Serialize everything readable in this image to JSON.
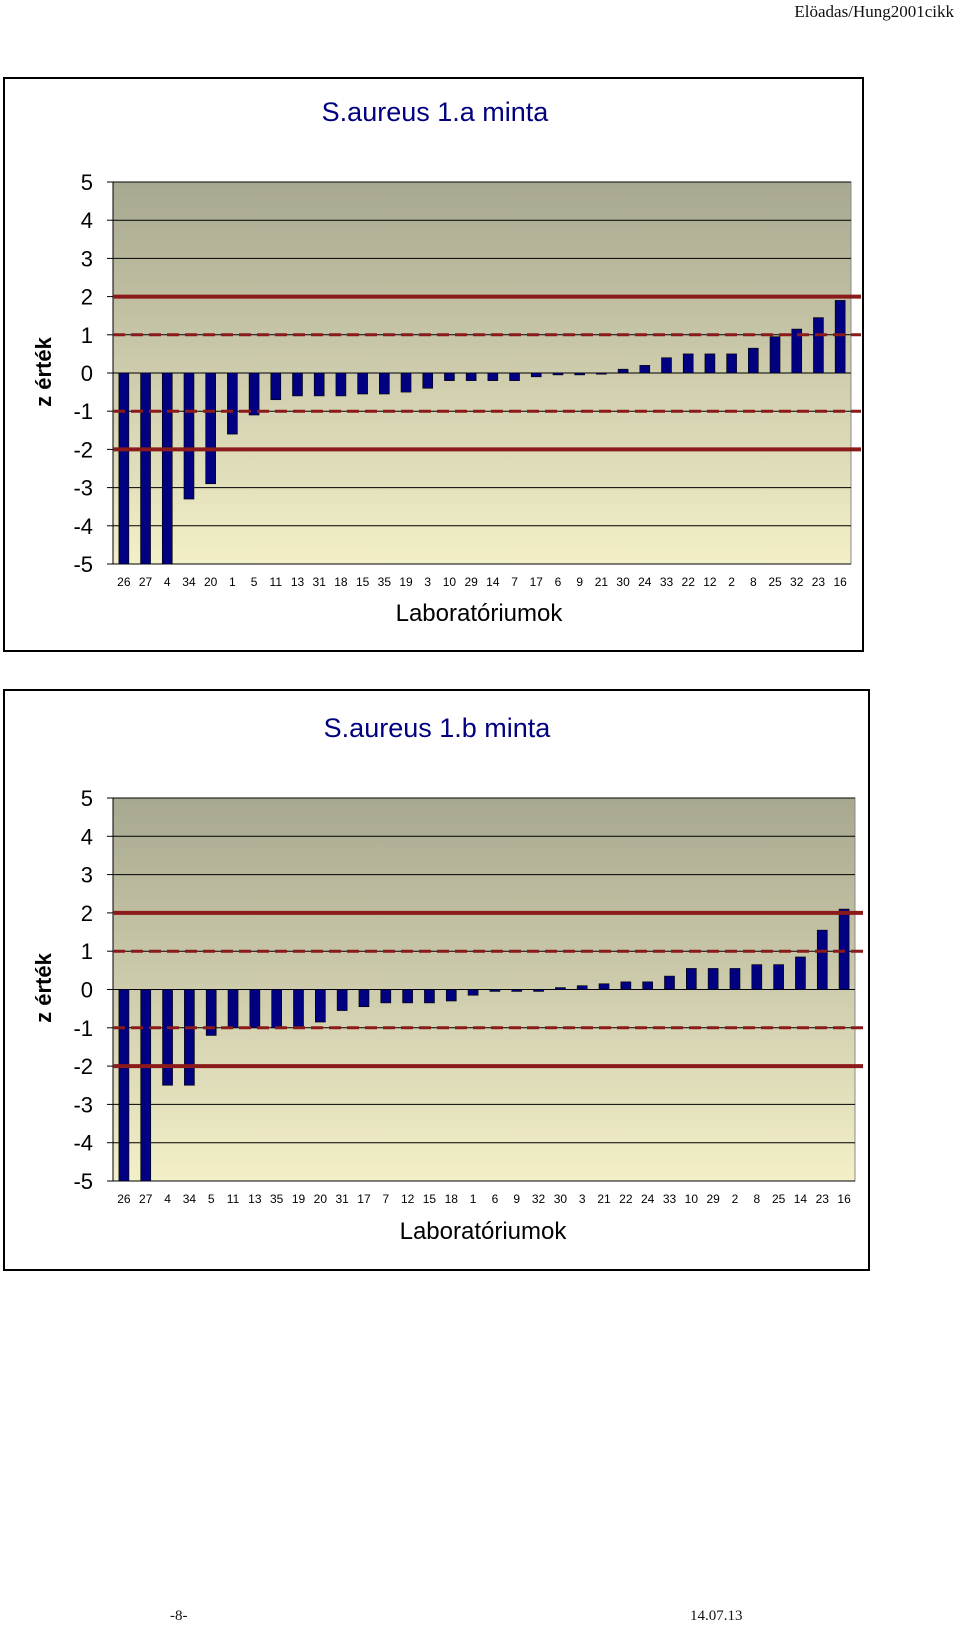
{
  "header": {
    "doc_ref": "Elöadas/Hung2001cikk"
  },
  "footer": {
    "page": "-8-",
    "date": "14.07.13"
  },
  "chart_data": [
    {
      "type": "bar",
      "title": "S.aureus 1.a minta",
      "xlabel": "Laboratóriumok",
      "ylabel": "z érték",
      "ylim": [
        -5,
        5
      ],
      "yticks": [
        "5",
        "4",
        "3",
        "2",
        "1",
        "0",
        "-1",
        "-2",
        "-3",
        "-4",
        "-5"
      ],
      "categories": [
        "26",
        "27",
        "4",
        "34",
        "20",
        "1",
        "5",
        "11",
        "13",
        "31",
        "18",
        "15",
        "35",
        "19",
        "3",
        "10",
        "29",
        "14",
        "7",
        "17",
        "6",
        "9",
        "21",
        "30",
        "24",
        "33",
        "22",
        "12",
        "2",
        "8",
        "25",
        "32",
        "23",
        "16"
      ],
      "values": [
        -5,
        -5,
        -5,
        -3.3,
        -2.9,
        -1.6,
        -1.1,
        -0.7,
        -0.6,
        -0.6,
        -0.6,
        -0.55,
        -0.55,
        -0.5,
        -0.4,
        -0.2,
        -0.2,
        -0.2,
        -0.2,
        -0.1,
        -0.05,
        -0.05,
        0,
        0.1,
        0.2,
        0.4,
        0.5,
        0.5,
        0.5,
        0.65,
        0.95,
        1.15,
        1.45,
        1.9
      ],
      "limits": {
        "solid": [
          2,
          -2
        ],
        "dashed": [
          1,
          -1
        ]
      },
      "colors": {
        "bar": "#000080",
        "plot_top": "#a8a890",
        "plot_bottom": "#f3f0c8",
        "limit": "#8b1a1a",
        "title": "#000080"
      }
    },
    {
      "type": "bar",
      "title": "S.aureus 1.b minta",
      "xlabel": "Laboratóriumok",
      "ylabel": "z érték",
      "ylim": [
        -5,
        5
      ],
      "yticks": [
        "5",
        "4",
        "3",
        "2",
        "1",
        "0",
        "-1",
        "-2",
        "-3",
        "-4",
        "-5"
      ],
      "categories": [
        "26",
        "27",
        "4",
        "34",
        "5",
        "11",
        "13",
        "35",
        "19",
        "20",
        "31",
        "17",
        "7",
        "12",
        "15",
        "18",
        "1",
        "6",
        "9",
        "32",
        "30",
        "3",
        "21",
        "22",
        "24",
        "33",
        "10",
        "29",
        "2",
        "8",
        "25",
        "14",
        "23",
        "16"
      ],
      "values": [
        -5,
        -5,
        -2.5,
        -2.5,
        -1.2,
        -1,
        -1,
        -1,
        -1,
        -0.85,
        -0.55,
        -0.45,
        -0.35,
        -0.35,
        -0.35,
        -0.3,
        -0.15,
        -0.05,
        -0.05,
        -0.05,
        0.05,
        0.1,
        0.15,
        0.2,
        0.2,
        0.35,
        0.55,
        0.55,
        0.55,
        0.65,
        0.65,
        0.85,
        1.55,
        2.1
      ],
      "limits": {
        "solid": [
          2,
          -2
        ],
        "dashed": [
          1,
          -1
        ]
      },
      "colors": {
        "bar": "#000080",
        "plot_top": "#a8a890",
        "plot_bottom": "#f3f0c8",
        "limit": "#8b1a1a",
        "title": "#000080"
      }
    }
  ]
}
